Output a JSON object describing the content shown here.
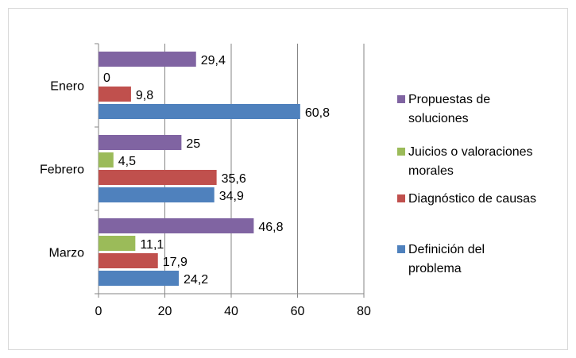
{
  "chart_data": {
    "type": "bar",
    "orientation": "horizontal",
    "categories": [
      "Enero",
      "Febrero",
      "Marzo"
    ],
    "series": [
      {
        "name": "Definición del problema",
        "values": [
          60.8,
          34.9,
          24.2
        ],
        "labels": [
          "60,8",
          "34,9",
          "24,2"
        ],
        "color": "#4f81bd"
      },
      {
        "name": "Diagnóstico de causas",
        "values": [
          9.8,
          35.6,
          17.9
        ],
        "labels": [
          "9,8",
          "35,6",
          "17,9"
        ],
        "color": "#c0504d"
      },
      {
        "name": "Juicios o valoraciones morales",
        "values": [
          0,
          4.5,
          11.1
        ],
        "labels": [
          "0",
          "4,5",
          "11,1"
        ],
        "color": "#9bbb59"
      },
      {
        "name": "Propuestas de soluciones",
        "values": [
          29.4,
          25,
          46.8
        ],
        "labels": [
          "29,4",
          "25",
          "46,8"
        ],
        "color": "#8064a2"
      }
    ],
    "xlim": [
      0,
      80
    ],
    "xticks": [
      "0",
      "20",
      "40",
      "60",
      "80"
    ],
    "grid": true,
    "legend": {
      "position": "right",
      "entries": [
        {
          "series": 3,
          "lines": [
            "Propuestas de",
            "soluciones"
          ]
        },
        {
          "series": 2,
          "lines": [
            "Juicios o valoraciones",
            "morales"
          ]
        },
        {
          "series": 1,
          "lines": [
            "Diagnóstico de causas"
          ]
        },
        {
          "series": 0,
          "lines": [
            "Definición del",
            "problema"
          ]
        }
      ]
    },
    "title": "",
    "xlabel": "",
    "ylabel": ""
  }
}
